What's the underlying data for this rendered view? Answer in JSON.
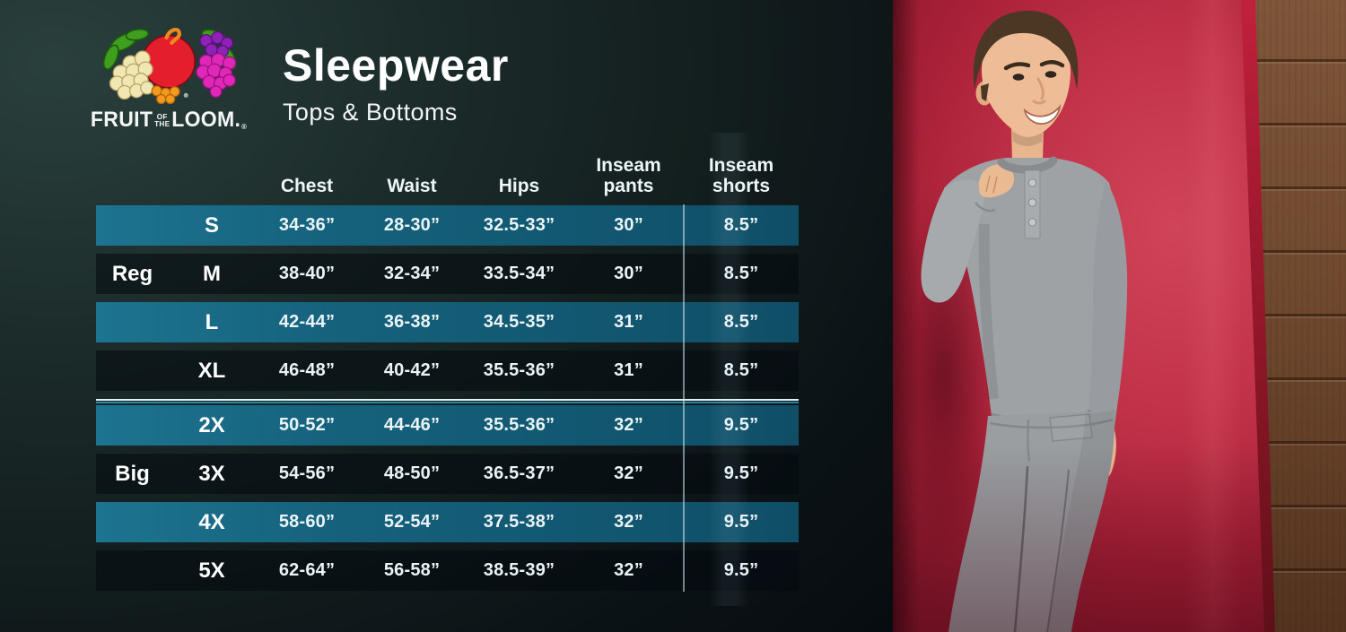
{
  "brand": {
    "fruit": "FRUIT",
    "of": "OF",
    "the": "THE",
    "loom": "LOOM.",
    "registered": "®"
  },
  "heading": {
    "title": "Sleepwear",
    "subtitle": "Tops & Bottoms"
  },
  "chart_data": {
    "type": "table",
    "title": "Sleepwear",
    "subtitle": "Tops & Bottoms",
    "column_headers": [
      "Chest",
      "Waist",
      "Hips",
      "Inseam\npants",
      "Inseam\nshorts"
    ],
    "group_labels": [
      "Reg",
      "Big"
    ],
    "rows": [
      {
        "group_label": "",
        "size": "S",
        "highlighted": true,
        "divider_before": false,
        "values": [
          "34-36”",
          "28-30”",
          "32.5-33”",
          "30”",
          "8.5”"
        ]
      },
      {
        "group_label": "Reg",
        "size": "M",
        "highlighted": false,
        "divider_before": false,
        "values": [
          "38-40”",
          "32-34”",
          "33.5-34”",
          "30”",
          "8.5”"
        ]
      },
      {
        "group_label": "",
        "size": "L",
        "highlighted": true,
        "divider_before": false,
        "values": [
          "42-44”",
          "36-38”",
          "34.5-35”",
          "31”",
          "8.5”"
        ]
      },
      {
        "group_label": "",
        "size": "XL",
        "highlighted": false,
        "divider_before": false,
        "values": [
          "46-48”",
          "40-42”",
          "35.5-36”",
          "31”",
          "8.5”"
        ]
      },
      {
        "group_label": "",
        "size": "2X",
        "highlighted": true,
        "divider_before": true,
        "values": [
          "50-52”",
          "44-46”",
          "35.5-36”",
          "32”",
          "9.5”"
        ]
      },
      {
        "group_label": "Big",
        "size": "3X",
        "highlighted": false,
        "divider_before": false,
        "values": [
          "54-56”",
          "48-50”",
          "36.5-37”",
          "32”",
          "9.5”"
        ]
      },
      {
        "group_label": "",
        "size": "4X",
        "highlighted": true,
        "divider_before": false,
        "values": [
          "58-60”",
          "52-54”",
          "37.5-38”",
          "32”",
          "9.5”"
        ]
      },
      {
        "group_label": "",
        "size": "5X",
        "highlighted": false,
        "divider_before": false,
        "values": [
          "62-64”",
          "56-58”",
          "38.5-39”",
          "32”",
          "9.5”"
        ]
      }
    ]
  },
  "colors": {
    "row_highlight_teal": "#15617c",
    "panel_background_dark": "#14201f",
    "wall_red": "#b02038",
    "wood_brown": "#6b4730",
    "pajama_gray": "#9ea2a5",
    "text_white": "#eef5f7"
  }
}
